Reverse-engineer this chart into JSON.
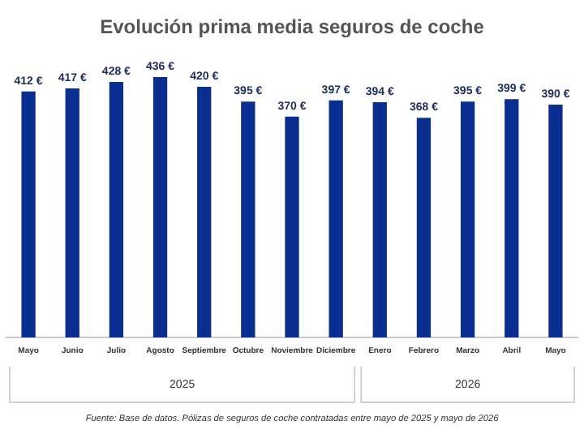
{
  "chart_data": {
    "type": "bar",
    "title": "Evolución prima media seguros de coche",
    "categories": [
      "Mayo",
      "Junio",
      "Julio",
      "Agosto",
      "Septiembre",
      "Octubre",
      "Noviembre",
      "Diciembre",
      "Enero",
      "Febrero",
      "Marzo",
      "Abril",
      "Mayo"
    ],
    "values": [
      412,
      417,
      428,
      436,
      420,
      395,
      370,
      397,
      394,
      368,
      395,
      399,
      390
    ],
    "value_labels": [
      "412 €",
      "417 €",
      "428 €",
      "436 €",
      "420 €",
      "395 €",
      "370 €",
      "397 €",
      "394 €",
      "368 €",
      "395 €",
      "399 €",
      "390 €"
    ],
    "color": "#0b2f91",
    "tick_labels": "x",
    "grid": false,
    "legend": false,
    "annotations": [
      "2025",
      "2026",
      "Fuente: Base de datos. Pólizas de seguros de coche contratadas entre mayo de 2025 y mayo de 2026"
    ]
  }
}
